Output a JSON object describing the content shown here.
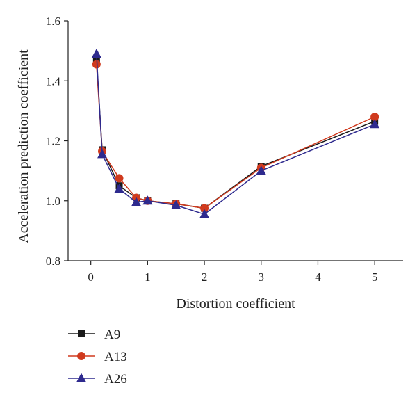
{
  "chart_data": {
    "type": "line",
    "xlabel": "Distortion coefficient",
    "ylabel": "Acceleration prediction coefficient",
    "xlim": [
      -0.4,
      5.5
    ],
    "ylim": [
      0.8,
      1.6
    ],
    "x_ticks": [
      0,
      1,
      2,
      3,
      4,
      5
    ],
    "y_ticks": [
      0.8,
      1.0,
      1.2,
      1.4,
      1.6
    ],
    "x_tick_labels": [
      "0",
      "1",
      "2",
      "3",
      "4",
      "5"
    ],
    "y_tick_labels": [
      "0.8",
      "1.0",
      "1.2",
      "1.4",
      "1.6"
    ],
    "legend_position": "bottom-left",
    "series": [
      {
        "name": "A9",
        "color": "#1a1a1a",
        "marker": "square",
        "x": [
          0.1,
          0.2,
          0.5,
          0.8,
          1.0,
          1.5,
          2.0,
          3.0,
          5.0
        ],
        "y": [
          1.47,
          1.17,
          1.05,
          1.01,
          1.0,
          0.99,
          0.975,
          1.115,
          1.265
        ]
      },
      {
        "name": "A13",
        "color": "#d03a1e",
        "marker": "circle",
        "x": [
          0.1,
          0.2,
          0.5,
          0.8,
          1.0,
          1.5,
          2.0,
          3.0,
          5.0
        ],
        "y": [
          1.455,
          1.165,
          1.075,
          1.01,
          1.0,
          0.99,
          0.975,
          1.11,
          1.28
        ]
      },
      {
        "name": "A26",
        "color": "#2e2a8e",
        "marker": "triangle",
        "x": [
          0.1,
          0.2,
          0.5,
          0.8,
          1.0,
          1.5,
          2.0,
          3.0,
          5.0
        ],
        "y": [
          1.49,
          1.155,
          1.04,
          0.995,
          1.0,
          0.985,
          0.955,
          1.1,
          1.255
        ]
      }
    ]
  }
}
